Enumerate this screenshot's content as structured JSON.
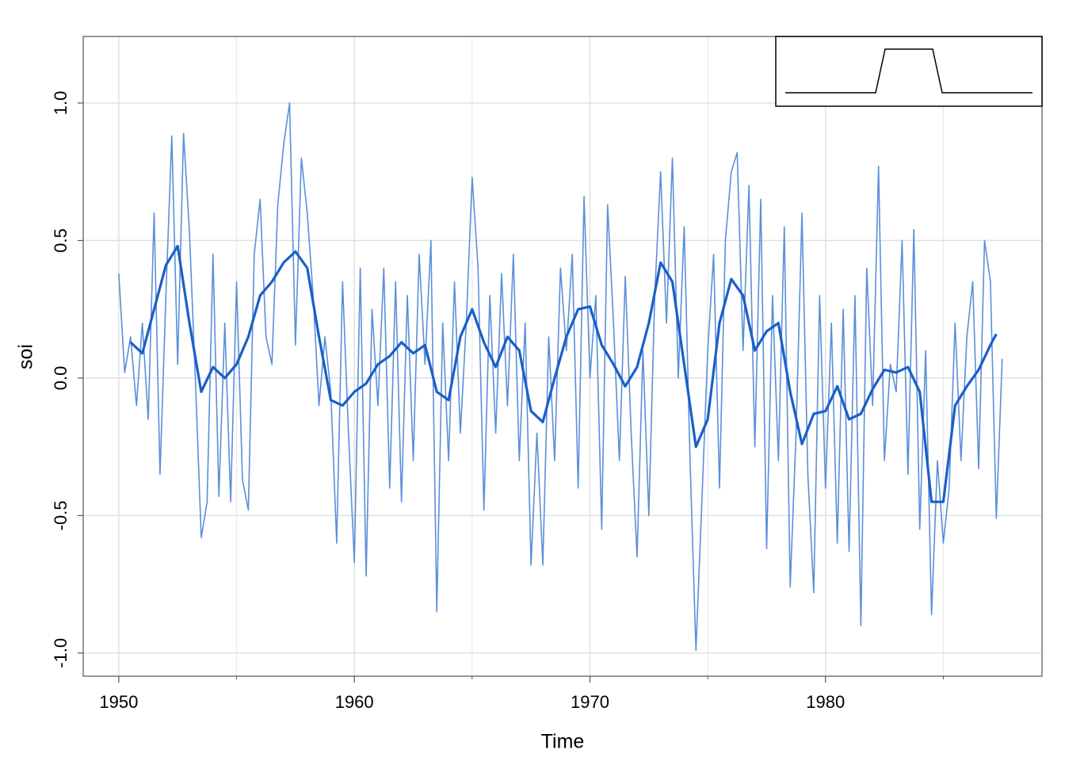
{
  "chart_data": {
    "type": "line",
    "x_label": "Time",
    "y_label": "soi",
    "xlim": [
      1948.49,
      1989.19
    ],
    "ylim": [
      -1.084,
      1.242
    ],
    "xticks": [
      1950,
      1960,
      1970,
      1980
    ],
    "xminor": [
      1955,
      1965,
      1975,
      1985
    ],
    "yticks": [
      {
        "value": -1.0,
        "label": "-1.0"
      },
      -0.5,
      {
        "value": 0.0,
        "label": "0.0"
      },
      0.5,
      {
        "value": 1.0,
        "label": "1.0"
      }
    ],
    "grid": true,
    "series": [
      {
        "color": "#5b8fd9",
        "width": 1.6,
        "x": [
          1950,
          1950.25,
          1950.5,
          1950.75,
          1951,
          1951.25,
          1951.5,
          1951.75,
          1952,
          1952.25,
          1952.5,
          1952.75,
          1953,
          1953.25,
          1953.5,
          1953.75,
          1954,
          1954.25,
          1954.5,
          1954.75,
          1955,
          1955.25,
          1955.5,
          1955.75,
          1956,
          1956.25,
          1956.5,
          1956.75,
          1957,
          1957.25,
          1957.5,
          1957.75,
          1958,
          1958.25,
          1958.5,
          1958.75,
          1959,
          1959.25,
          1959.5,
          1959.75,
          1960,
          1960.25,
          1960.5,
          1960.75,
          1961,
          1961.25,
          1961.5,
          1961.75,
          1962,
          1962.25,
          1962.5,
          1962.75,
          1963,
          1963.25,
          1963.5,
          1963.75,
          1964,
          1964.25,
          1964.5,
          1964.75,
          1965,
          1965.25,
          1965.5,
          1965.75,
          1966,
          1966.25,
          1966.5,
          1966.75,
          1967,
          1967.25,
          1967.5,
          1967.75,
          1968,
          1968.25,
          1968.5,
          1968.75,
          1969,
          1969.25,
          1969.5,
          1969.75,
          1970,
          1970.25,
          1970.5,
          1970.75,
          1971,
          1971.25,
          1971.5,
          1971.75,
          1972,
          1972.25,
          1972.5,
          1972.75,
          1973,
          1973.25,
          1973.5,
          1973.75,
          1974,
          1974.25,
          1974.5,
          1974.75,
          1975,
          1975.25,
          1975.5,
          1975.75,
          1976,
          1976.25,
          1976.5,
          1976.75,
          1977,
          1977.25,
          1977.5,
          1977.75,
          1978,
          1978.25,
          1978.5,
          1978.75,
          1979,
          1979.25,
          1979.5,
          1979.75,
          1980,
          1980.25,
          1980.5,
          1980.75,
          1981,
          1981.25,
          1981.5,
          1981.75,
          1982,
          1982.25,
          1982.5,
          1982.75,
          1983,
          1983.25,
          1983.5,
          1983.75,
          1984,
          1984.25,
          1984.5,
          1984.75,
          1985,
          1985.25,
          1985.5,
          1985.75,
          1986,
          1986.25,
          1986.5,
          1986.75,
          1987,
          1987.25,
          1987.5
        ],
        "values": [
          0.38,
          0.02,
          0.15,
          -0.1,
          0.2,
          -0.15,
          0.6,
          -0.35,
          0.3,
          0.88,
          0.05,
          0.89,
          0.53,
          0.0,
          -0.58,
          -0.45,
          0.45,
          -0.43,
          0.2,
          -0.45,
          0.35,
          -0.37,
          -0.48,
          0.45,
          0.65,
          0.15,
          0.05,
          0.63,
          0.85,
          1.0,
          0.12,
          0.8,
          0.6,
          0.3,
          -0.1,
          0.15,
          -0.05,
          -0.6,
          0.35,
          -0.2,
          -0.67,
          0.4,
          -0.72,
          0.25,
          -0.1,
          0.4,
          -0.4,
          0.35,
          -0.45,
          0.3,
          -0.3,
          0.45,
          0.05,
          0.5,
          -0.85,
          0.2,
          -0.3,
          0.35,
          -0.2,
          0.2,
          0.73,
          0.4,
          -0.48,
          0.3,
          -0.2,
          0.38,
          -0.1,
          0.45,
          -0.3,
          0.2,
          -0.68,
          -0.2,
          -0.68,
          0.15,
          -0.3,
          0.4,
          0.1,
          0.45,
          -0.4,
          0.66,
          0.0,
          0.3,
          -0.55,
          0.63,
          0.2,
          -0.3,
          0.37,
          -0.2,
          -0.65,
          0.1,
          -0.5,
          0.3,
          0.75,
          0.2,
          0.8,
          0.0,
          0.55,
          -0.3,
          -0.99,
          -0.45,
          0.1,
          0.45,
          -0.4,
          0.5,
          0.75,
          0.82,
          0.1,
          0.7,
          -0.25,
          0.65,
          -0.62,
          0.3,
          -0.3,
          0.55,
          -0.76,
          -0.2,
          0.6,
          -0.35,
          -0.78,
          0.3,
          -0.4,
          0.2,
          -0.6,
          0.25,
          -0.63,
          0.3,
          -0.9,
          0.4,
          -0.1,
          0.77,
          -0.3,
          0.05,
          -0.05,
          0.5,
          -0.35,
          0.54,
          -0.55,
          0.1,
          -0.86,
          -0.3,
          -0.6,
          -0.4,
          0.2,
          -0.3,
          0.15,
          0.35,
          -0.33,
          0.5,
          0.35,
          -0.51,
          0.07
        ]
      },
      {
        "color": "#1a5fc8",
        "width": 3.2,
        "x": [
          1950.5,
          1951,
          1951.5,
          1952,
          1952.5,
          1953,
          1953.5,
          1954,
          1954.5,
          1955,
          1955.5,
          1956,
          1956.5,
          1957,
          1957.5,
          1958,
          1958.5,
          1959,
          1959.5,
          1960,
          1960.5,
          1961,
          1961.5,
          1962,
          1962.5,
          1963,
          1963.5,
          1964,
          1964.5,
          1965,
          1965.5,
          1966,
          1966.5,
          1967,
          1967.5,
          1968,
          1968.5,
          1969,
          1969.5,
          1970,
          1970.5,
          1971,
          1971.5,
          1972,
          1972.5,
          1973,
          1973.5,
          1974,
          1974.5,
          1975,
          1975.5,
          1976,
          1976.5,
          1977,
          1977.5,
          1978,
          1978.5,
          1979,
          1979.5,
          1980,
          1980.5,
          1981,
          1981.5,
          1982,
          1982.5,
          1983,
          1983.5,
          1984,
          1984.5,
          1985,
          1985.5,
          1986,
          1986.5,
          1987,
          1987.25
        ],
        "values": [
          0.13,
          0.09,
          0.25,
          0.41,
          0.48,
          0.2,
          -0.05,
          0.04,
          0.0,
          0.05,
          0.15,
          0.3,
          0.35,
          0.42,
          0.46,
          0.4,
          0.15,
          -0.08,
          -0.1,
          -0.05,
          -0.02,
          0.05,
          0.08,
          0.13,
          0.09,
          0.12,
          -0.05,
          -0.08,
          0.15,
          0.25,
          0.13,
          0.04,
          0.15,
          0.1,
          -0.12,
          -0.16,
          0.0,
          0.15,
          0.25,
          0.26,
          0.12,
          0.05,
          -0.03,
          0.04,
          0.2,
          0.42,
          0.35,
          0.05,
          -0.25,
          -0.15,
          0.2,
          0.36,
          0.3,
          0.1,
          0.17,
          0.2,
          -0.05,
          -0.24,
          -0.13,
          -0.12,
          -0.03,
          -0.15,
          -0.13,
          -0.04,
          0.03,
          0.02,
          0.04,
          -0.05,
          -0.45,
          -0.45,
          -0.1,
          -0.03,
          0.03,
          0.12,
          0.16
        ]
      }
    ],
    "inset": {
      "type": "line",
      "color": "#000000",
      "x": [
        -13,
        -3.5,
        -2.5,
        2.5,
        3.5,
        13
      ],
      "values": [
        0,
        0,
        1,
        1,
        0,
        0
      ],
      "xlim": [
        -13,
        13
      ],
      "ylim": [
        0,
        1
      ]
    }
  }
}
